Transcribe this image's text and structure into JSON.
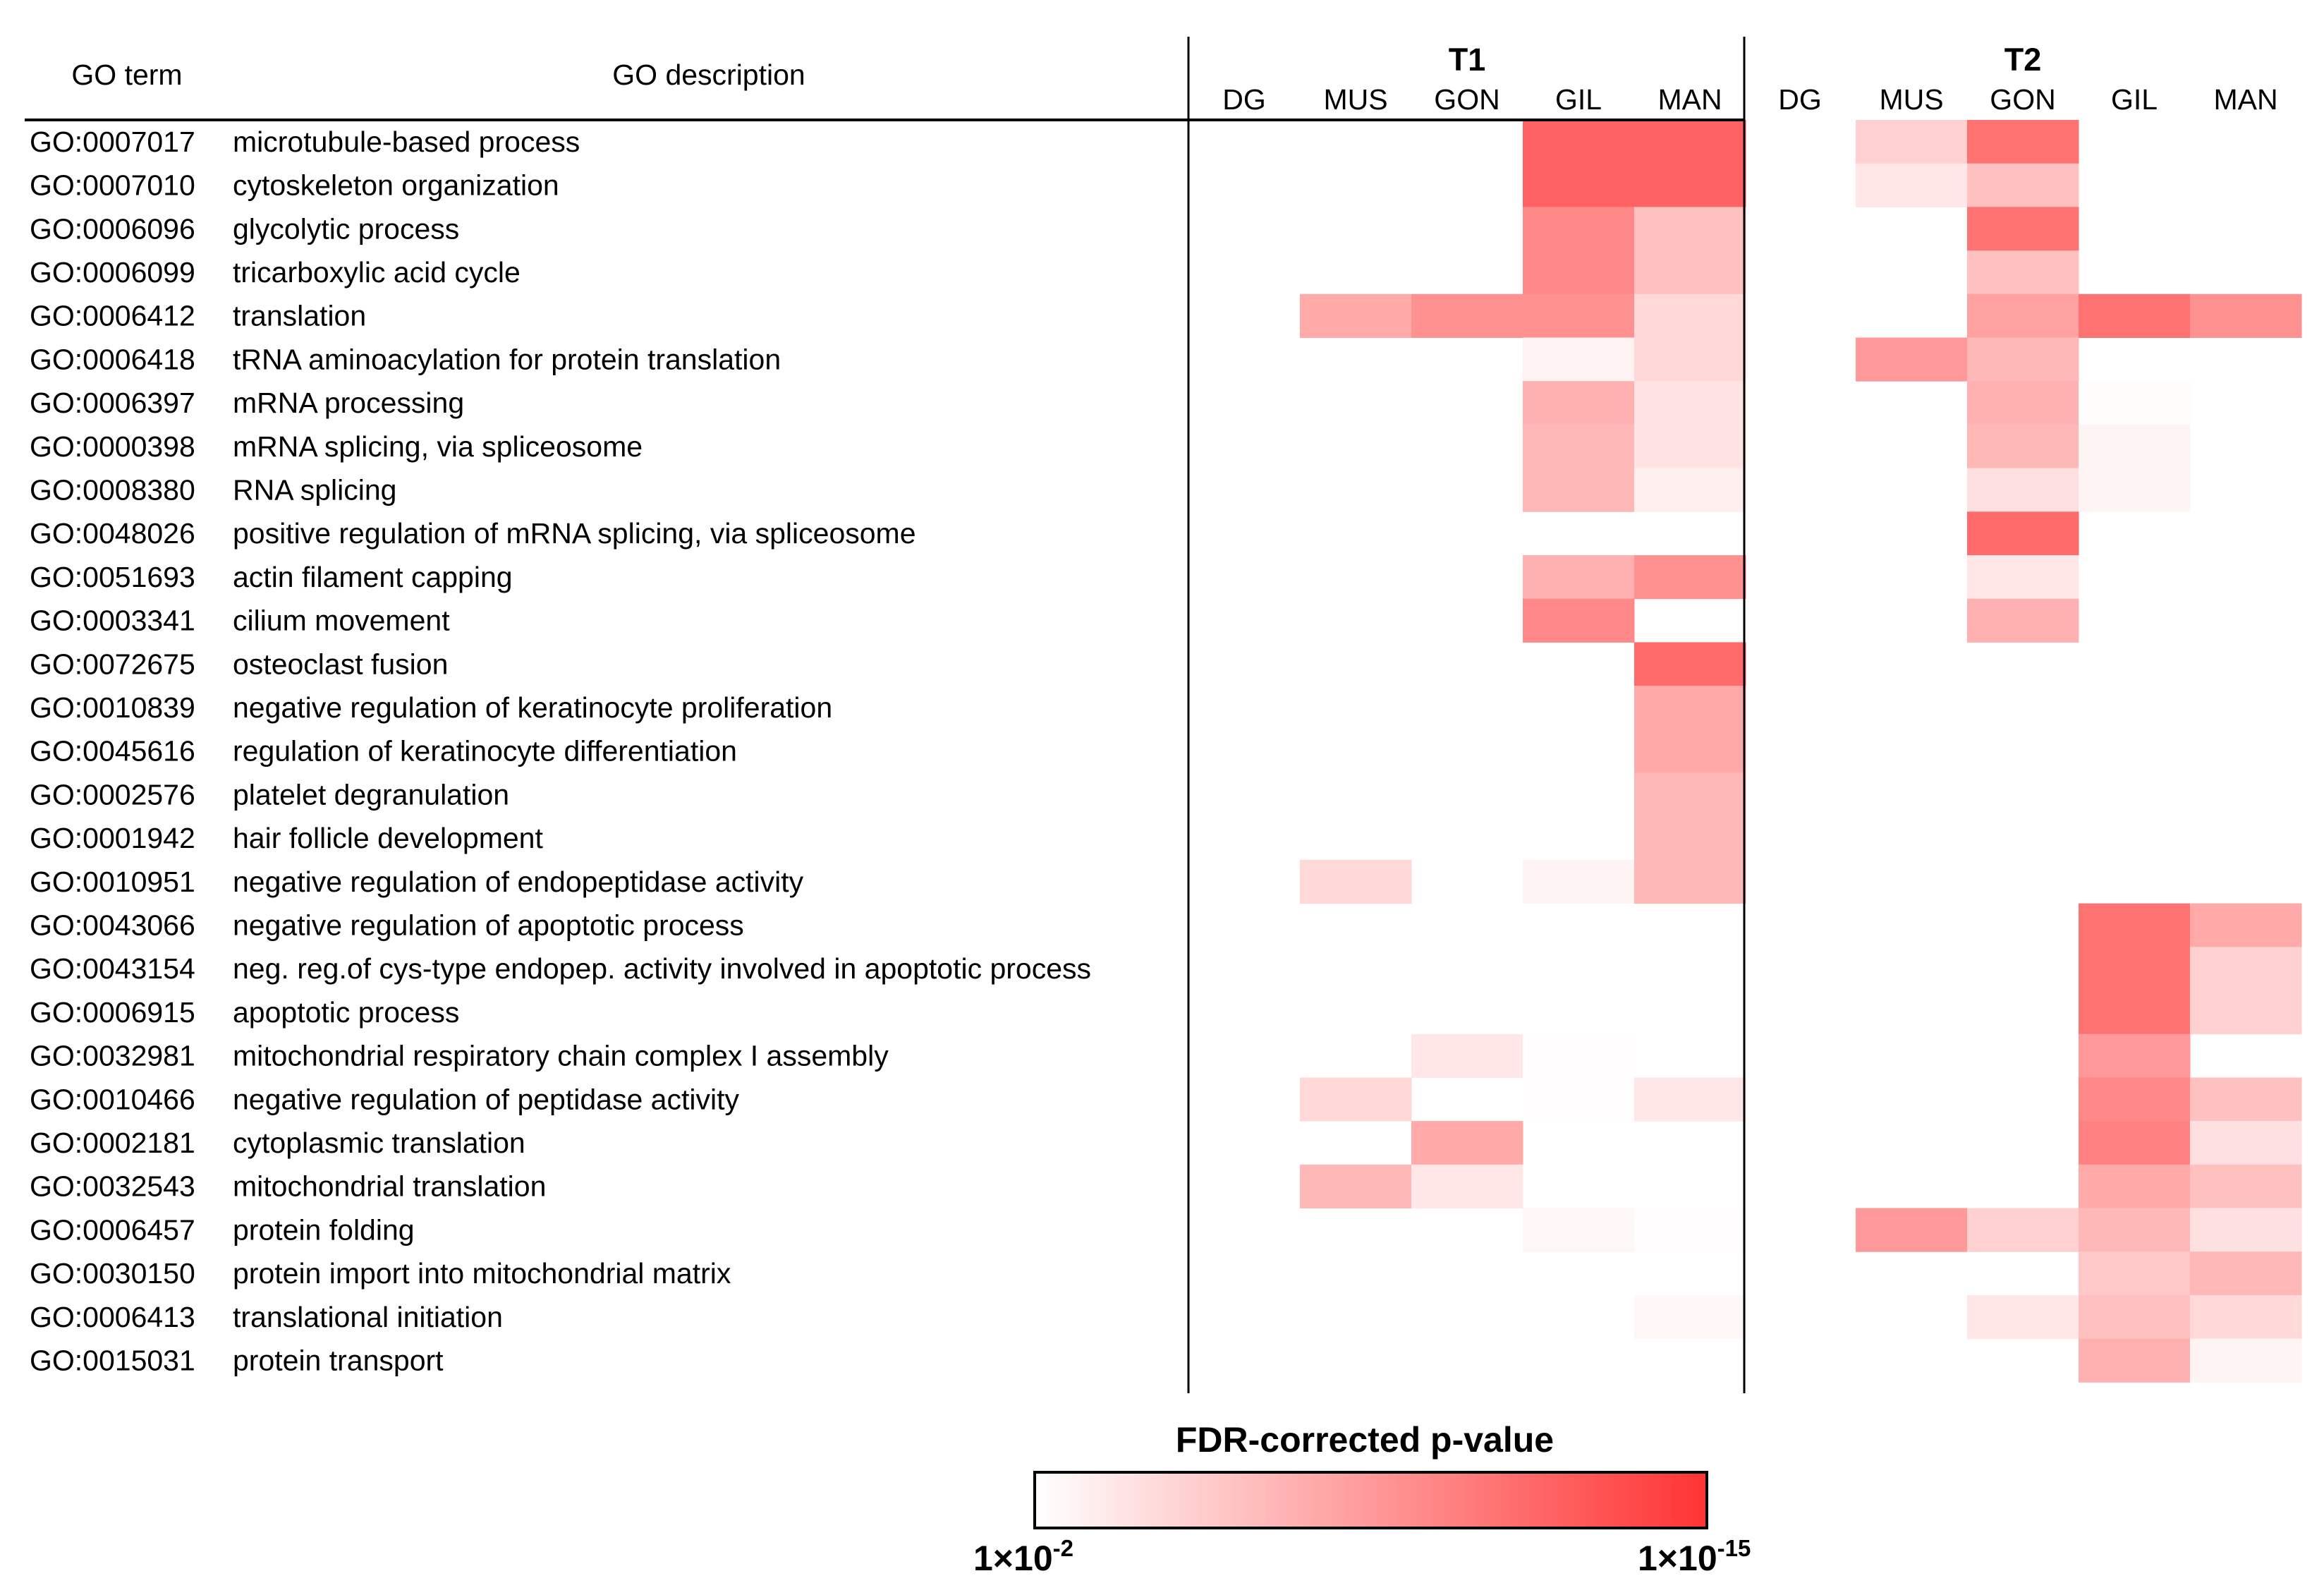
{
  "chart_data": {
    "type": "heatmap",
    "headers": {
      "term": "GO term",
      "description": "GO description"
    },
    "groups": [
      {
        "name": "T1",
        "columns": [
          "DG",
          "MUS",
          "GON",
          "GIL",
          "MAN"
        ]
      },
      {
        "name": "T2",
        "columns": [
          "DG",
          "MUS",
          "GON",
          "GIL",
          "MAN"
        ]
      }
    ],
    "value_scale": "-log10(FDR-corrected p-value)",
    "value_range": [
      2,
      15
    ],
    "colorbar": {
      "title": "FDR-corrected p-value",
      "low_label": "1×10",
      "low_exp": "-2",
      "high_label": "1×10",
      "high_exp": "-15",
      "low_color": "#ffffff",
      "high_color": "#ff3333"
    },
    "rows": [
      {
        "term": "GO:0007017",
        "description": "microtubule-based process",
        "values": [
          null,
          null,
          null,
          12,
          12,
          null,
          5,
          11,
          null,
          null
        ]
      },
      {
        "term": "GO:0007010",
        "description": "cytoskeleton organization",
        "values": [
          null,
          null,
          null,
          12,
          12,
          null,
          3.5,
          6,
          null,
          null
        ]
      },
      {
        "term": "GO:0006096",
        "description": "glycolytic process",
        "values": [
          null,
          null,
          null,
          9.5,
          6,
          null,
          null,
          11,
          null,
          null
        ]
      },
      {
        "term": "GO:0006099",
        "description": "tricarboxylic acid cycle",
        "values": [
          null,
          null,
          null,
          9.5,
          6,
          null,
          null,
          6,
          null,
          null
        ]
      },
      {
        "term": "GO:0006412",
        "description": "translation",
        "values": [
          null,
          7.5,
          9,
          9,
          4.5,
          null,
          null,
          8,
          11,
          9
        ]
      },
      {
        "term": "GO:0006418",
        "description": "tRNA aminoacylation for protein translation",
        "values": [
          null,
          null,
          null,
          2.8,
          4.5,
          null,
          8.5,
          6.5,
          null,
          null
        ]
      },
      {
        "term": "GO:0006397",
        "description": "mRNA processing",
        "values": [
          null,
          null,
          null,
          7,
          3.8,
          null,
          null,
          7,
          2.2,
          null
        ]
      },
      {
        "term": "GO:0000398",
        "description": "mRNA splicing, via spliceosome",
        "values": [
          null,
          null,
          null,
          6.5,
          3.8,
          null,
          null,
          6.5,
          2.7,
          null
        ]
      },
      {
        "term": "GO:0008380",
        "description": "RNA splicing",
        "values": [
          null,
          null,
          null,
          6.5,
          3,
          null,
          null,
          4,
          2.7,
          null
        ]
      },
      {
        "term": "GO:0048026",
        "description": "positive regulation of mRNA splicing, via spliceosome",
        "values": [
          null,
          null,
          null,
          null,
          null,
          null,
          null,
          11.5,
          null,
          null
        ]
      },
      {
        "term": "GO:0051693",
        "description": "actin filament capping",
        "values": [
          null,
          null,
          null,
          7,
          9,
          null,
          null,
          3.5,
          null,
          null
        ]
      },
      {
        "term": "GO:0003341",
        "description": "cilium movement",
        "values": [
          null,
          null,
          null,
          9.5,
          null,
          null,
          null,
          7,
          null,
          null
        ]
      },
      {
        "term": "GO:0072675",
        "description": "osteoclast fusion",
        "values": [
          null,
          null,
          null,
          null,
          11.5,
          null,
          null,
          null,
          null,
          null
        ]
      },
      {
        "term": "GO:0010839",
        "description": "negative regulation of keratinocyte proliferation",
        "values": [
          null,
          null,
          null,
          null,
          7.5,
          null,
          null,
          null,
          null,
          null
        ]
      },
      {
        "term": "GO:0045616",
        "description": "regulation of keratinocyte differentiation",
        "values": [
          null,
          null,
          null,
          null,
          7.5,
          null,
          null,
          null,
          null,
          null
        ]
      },
      {
        "term": "GO:0002576",
        "description": "platelet degranulation",
        "values": [
          null,
          null,
          null,
          null,
          6.5,
          null,
          null,
          null,
          null,
          null
        ]
      },
      {
        "term": "GO:0001942",
        "description": "hair follicle development",
        "values": [
          null,
          null,
          null,
          null,
          6.5,
          null,
          null,
          null,
          null,
          null
        ]
      },
      {
        "term": "GO:0010951",
        "description": "negative regulation of endopeptidase activity",
        "values": [
          null,
          4.5,
          null,
          2.7,
          6.5,
          null,
          null,
          null,
          null,
          null
        ]
      },
      {
        "term": "GO:0043066",
        "description": "negative regulation of apoptotic process",
        "values": [
          null,
          null,
          null,
          null,
          null,
          null,
          null,
          null,
          11,
          7.5
        ]
      },
      {
        "term": "GO:0043154",
        "description": "neg. reg.of cys-type endopep. activity involved in apoptotic process",
        "values": [
          null,
          null,
          null,
          null,
          null,
          null,
          null,
          null,
          11,
          5
        ]
      },
      {
        "term": "GO:0006915",
        "description": "apoptotic process",
        "values": [
          null,
          null,
          null,
          null,
          null,
          null,
          null,
          null,
          11,
          5
        ]
      },
      {
        "term": "GO:0032981",
        "description": "mitochondrial respiratory chain complex I assembly",
        "values": [
          null,
          null,
          3.5,
          2.1,
          null,
          null,
          null,
          null,
          8.5,
          null
        ]
      },
      {
        "term": "GO:0010466",
        "description": "negative regulation of peptidase activity",
        "values": [
          null,
          4.5,
          null,
          2.1,
          3.5,
          null,
          null,
          null,
          9.5,
          6
        ]
      },
      {
        "term": "GO:0002181",
        "description": "cytoplasmic translation",
        "values": [
          null,
          null,
          7.5,
          null,
          null,
          null,
          null,
          null,
          10,
          4
        ]
      },
      {
        "term": "GO:0032543",
        "description": "mitochondrial translation",
        "values": [
          null,
          6.5,
          3.5,
          null,
          null,
          null,
          null,
          null,
          7.5,
          6
        ]
      },
      {
        "term": "GO:0006457",
        "description": "protein folding",
        "values": [
          null,
          null,
          null,
          2.6,
          2.1,
          null,
          8.5,
          5,
          6.5,
          4
        ]
      },
      {
        "term": "GO:0030150",
        "description": "protein import into mitochondrial matrix",
        "values": [
          null,
          null,
          null,
          null,
          null,
          null,
          null,
          null,
          5.5,
          6.5
        ]
      },
      {
        "term": "GO:0006413",
        "description": "translational initiation",
        "values": [
          null,
          null,
          null,
          null,
          2.6,
          null,
          null,
          3.5,
          6,
          4.5
        ]
      },
      {
        "term": "GO:0015031",
        "description": "protein transport",
        "values": [
          null,
          null,
          null,
          null,
          null,
          null,
          null,
          null,
          7,
          2.7
        ]
      }
    ]
  }
}
